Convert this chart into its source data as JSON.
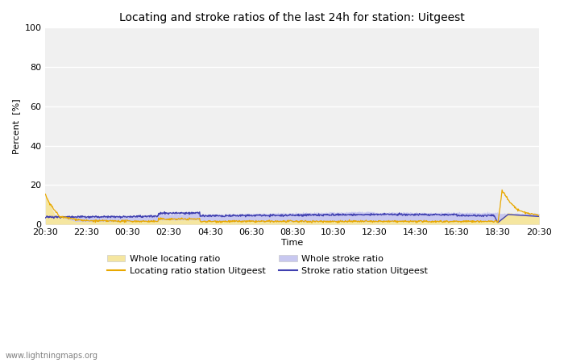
{
  "title": "Locating and stroke ratios of the last 24h for station: Uitgeest",
  "ylabel": "Percent  [%]",
  "xlabel": "Time",
  "ylim": [
    0,
    100
  ],
  "yticks": [
    0,
    20,
    40,
    60,
    80,
    100
  ],
  "xtick_labels": [
    "20:30",
    "22:30",
    "00:30",
    "02:30",
    "04:30",
    "06:30",
    "08:30",
    "10:30",
    "12:30",
    "14:30",
    "16:30",
    "18:30",
    "20:30"
  ],
  "bg_color": "#ffffff",
  "plot_bg_color": "#f0f0f0",
  "grid_color": "#ffffff",
  "watermark": "www.lightningmaps.org",
  "whole_locating_fill_color": "#f5e6a0",
  "whole_stroke_fill_color": "#c8c8f0",
  "station_locating_color": "#e8a800",
  "station_stroke_color": "#4040b0",
  "legend_entries": [
    "Whole locating ratio",
    "Locating ratio station Uitgeest",
    "Whole stroke ratio",
    "Stroke ratio station Uitgeest"
  ]
}
